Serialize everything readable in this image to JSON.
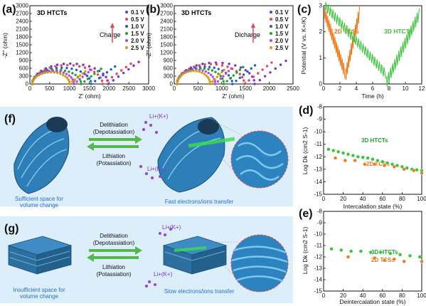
{
  "panels": {
    "a": {
      "letter": "(a)",
      "title": "3D HTCTs",
      "state_label": "Charge",
      "xlabel": "Z' (ohm)",
      "ylabel": "-Z'' (ohm)",
      "xticks": [
        "0",
        "500",
        "1000",
        "1500",
        "2000",
        "2500",
        "3000"
      ],
      "yticks": [
        "0",
        "300",
        "600",
        "900",
        "1200",
        "1500",
        "1800",
        "2100",
        "2400",
        "2700",
        "3000"
      ],
      "legend": [
        "0.1 V",
        "0.5 V",
        "1.0 V",
        "1.5 V",
        "2.0 V",
        "2.5 V"
      ]
    },
    "b": {
      "letter": "(b)",
      "title": "3D HTCTs",
      "state_label": "Dicharge",
      "xlabel": "Z' (ohm)",
      "ylabel": "-Z'' (ohm)",
      "xticks": [
        "0",
        "500",
        "1000",
        "1500",
        "2000",
        "2500"
      ],
      "yticks": [
        "0",
        "300",
        "600",
        "900",
        "1200",
        "1500",
        "1800",
        "2100",
        "2400",
        "2700",
        "3000"
      ],
      "legend": [
        "0.1 V",
        "0.5 V",
        "1.0 V",
        "1.5 V",
        "2.0 V",
        "2.5 V"
      ]
    },
    "c": {
      "letter": "(c)",
      "xlabel": "Time (h)",
      "ylabel": "Potential (V vs. K+/K)",
      "xticks": [
        "0",
        "2",
        "4",
        "6",
        "8",
        "10",
        "12"
      ],
      "yticks": [
        "0",
        "1",
        "2",
        "3"
      ],
      "series": [
        "2D TCSs",
        "3D HTCTs"
      ]
    },
    "d": {
      "letter": "(d)",
      "xlabel": "Intercalation state (%)",
      "ylabel": "Log Dk (cm2 S-1)",
      "xticks": [
        "0",
        "20",
        "40",
        "60",
        "80",
        "100"
      ],
      "yticks": [
        "-8",
        "-9",
        "-10",
        "-11",
        "-12",
        "-13",
        "-14",
        "-15"
      ],
      "series": [
        "3D HTCTs",
        "2D TCSs"
      ]
    },
    "e": {
      "letter": "(e)",
      "xlabel": "Deintercalation state (%)",
      "ylabel": "Log Dk (cm2 S-1)",
      "xticks": [
        "0",
        "20",
        "40",
        "60",
        "80",
        "100"
      ],
      "yticks": [
        "-8",
        "-9",
        "-10",
        "-11",
        "-12",
        "-13",
        "-14",
        "-15"
      ],
      "series": [
        "3D HTCTs",
        "2D TCSs"
      ]
    },
    "f": {
      "letter": "(f)",
      "arrow_top": "Delithiation",
      "arrow_top2": "(Depotassiation)",
      "arrow_bottom": "Lithiation",
      "arrow_bottom2": "(Potassiation)",
      "ion1": "Li+(K+)",
      "ion2": "Li+(K+)",
      "caption_left1": "Sufficient space for",
      "caption_left2": "volume change",
      "caption_right": "Fast electrons/ions transfer"
    },
    "g": {
      "letter": "(g)",
      "arrow_top": "Delithiation",
      "arrow_top2": "(Depotassiation)",
      "arrow_bottom": "Lithiation",
      "arrow_bottom2": "(Potassiation)",
      "ion1": "Li+(K+)",
      "ion2": "Li+(K+)",
      "caption_left1": "Insufficient space for",
      "caption_left2": "volume change",
      "caption_right": "Slow electrons/ions transfer"
    }
  },
  "colors": {
    "v01": "#7b2fd6",
    "v05": "#e8435b",
    "v10": "#1f5fc9",
    "v15": "#22a032",
    "v20": "#b04ae0",
    "v25": "#d49a10",
    "green": "#3ac43a",
    "orange": "#f07a1a",
    "bg_blue": "#dceefa"
  },
  "chart_data": [
    {
      "type": "scatter",
      "panel": "a",
      "title": "3D HTCTs",
      "xlabel": "Z' (ohm)",
      "ylabel": "-Z'' (ohm)",
      "xlim": [
        0,
        3000
      ],
      "ylim": [
        0,
        3000
      ],
      "series": [
        {
          "name": "0.1 V",
          "arc_end": 2750,
          "peak": 780
        },
        {
          "name": "0.5 V",
          "arc_end": 2550,
          "peak": 720
        },
        {
          "name": "1.0 V",
          "arc_end": 2150,
          "peak": 620
        },
        {
          "name": "1.5 V",
          "arc_end": 1800,
          "peak": 540
        },
        {
          "name": "2.0 V",
          "arc_end": 1550,
          "peak": 500
        },
        {
          "name": "2.5 V",
          "arc_end": 1400,
          "peak": 450
        }
      ]
    },
    {
      "type": "scatter",
      "panel": "b",
      "title": "3D HTCTs",
      "xlabel": "Z' (ohm)",
      "ylabel": "-Z'' (ohm)",
      "xlim": [
        0,
        2500
      ],
      "ylim": [
        0,
        3000
      ],
      "series": [
        {
          "name": "0.1 V",
          "arc_end": 2350,
          "peak": 820
        },
        {
          "name": "0.5 V",
          "arc_end": 2050,
          "peak": 760
        },
        {
          "name": "1.0 V",
          "arc_end": 1700,
          "peak": 660
        },
        {
          "name": "1.5 V",
          "arc_end": 1450,
          "peak": 600
        },
        {
          "name": "2.0 V",
          "arc_end": 1200,
          "peak": 550
        },
        {
          "name": "2.5 V",
          "arc_end": 1050,
          "peak": 500
        }
      ]
    },
    {
      "type": "line",
      "panel": "c",
      "xlabel": "Time (h)",
      "ylabel": "Potential (V vs. K+/K)",
      "xlim": [
        0,
        12
      ],
      "ylim": [
        0,
        3
      ]
    },
    {
      "type": "scatter",
      "panel": "d",
      "xlabel": "Intercalation state (%)",
      "ylabel": "Log Dk (cm2 S-1)",
      "xlim": [
        0,
        100
      ],
      "ylim": [
        -15,
        -8
      ],
      "series": [
        {
          "name": "3D HTCTs",
          "x": [
            5,
            10,
            15,
            20,
            25,
            30,
            35,
            40,
            45,
            50,
            55,
            60,
            65,
            70,
            75,
            80,
            85,
            90,
            95,
            100
          ],
          "y": [
            -11.4,
            -11.5,
            -11.6,
            -11.7,
            -11.8,
            -11.9,
            -12.0,
            -12.05,
            -12.1,
            -12.2,
            -12.3,
            -12.4,
            -12.5,
            -12.6,
            -12.7,
            -12.8,
            -12.9,
            -13.0,
            -13.05,
            -13.1
          ]
        },
        {
          "name": "2D TCSs",
          "x": [
            12,
            22,
            32,
            42,
            52,
            62,
            72,
            82,
            92,
            100
          ],
          "y": [
            -12.1,
            -12.3,
            -12.3,
            -12.6,
            -12.6,
            -12.7,
            -12.8,
            -13.0,
            -13.1,
            -13.3
          ]
        }
      ]
    },
    {
      "type": "scatter",
      "panel": "e",
      "xlabel": "Deintercalation state (%)",
      "ylabel": "Log Dk (cm2 S-1)",
      "xlim": [
        0,
        100
      ],
      "ylim": [
        -15,
        -8
      ],
      "series": [
        {
          "name": "3D HTCTs",
          "x": [
            8,
            18,
            28,
            38,
            48,
            58,
            68,
            78,
            88,
            98
          ],
          "y": [
            -11.3,
            -11.4,
            -11.5,
            -11.5,
            -11.6,
            -11.6,
            -11.7,
            -11.8,
            -11.9,
            -12.0
          ]
        },
        {
          "name": "2D TCSs",
          "x": [
            25,
            52,
            62,
            72,
            82,
            100
          ],
          "y": [
            -12.0,
            -12.1,
            -12.3,
            -12.2,
            -12.4,
            -12.4
          ]
        }
      ]
    }
  ]
}
